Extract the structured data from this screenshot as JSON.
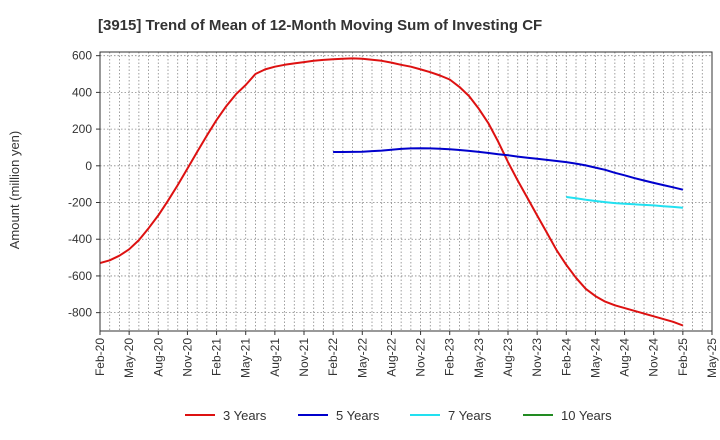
{
  "chart_data": {
    "type": "line",
    "title": "[3915]  Trend of Mean of 12-Month Moving Sum of Investing CF",
    "ylabel": "Amount (million yen)",
    "xlabel": "",
    "ylim": [
      -900,
      620
    ],
    "yticks": [
      600,
      400,
      200,
      0,
      -200,
      -400,
      -600,
      -800
    ],
    "x_tick_labels": [
      "Feb-20",
      "May-20",
      "Aug-20",
      "Nov-20",
      "Feb-21",
      "May-21",
      "Aug-21",
      "Nov-21",
      "Feb-22",
      "May-22",
      "Aug-22",
      "Nov-22",
      "Feb-23",
      "May-23",
      "Aug-23",
      "Nov-23",
      "Feb-24",
      "May-24",
      "Aug-24",
      "Nov-24",
      "Feb-25",
      "May-25"
    ],
    "grid": true,
    "legend_position": "bottom",
    "series": [
      {
        "name": "3 Years",
        "color": "#dd1111",
        "points": [
          [
            "Feb-20",
            -530
          ],
          [
            "Mar-20",
            -515
          ],
          [
            "Apr-20",
            -490
          ],
          [
            "May-20",
            -455
          ],
          [
            "Jun-20",
            -405
          ],
          [
            "Jul-20",
            -340
          ],
          [
            "Aug-20",
            -270
          ],
          [
            "Sep-20",
            -190
          ],
          [
            "Oct-20",
            -105
          ],
          [
            "Nov-20",
            -15
          ],
          [
            "Dec-20",
            75
          ],
          [
            "Jan-21",
            165
          ],
          [
            "Feb-21",
            250
          ],
          [
            "Mar-21",
            325
          ],
          [
            "Apr-21",
            390
          ],
          [
            "May-21",
            440
          ],
          [
            "Jun-21",
            500
          ],
          [
            "Jul-21",
            525
          ],
          [
            "Aug-21",
            540
          ],
          [
            "Sep-21",
            550
          ],
          [
            "Oct-21",
            558
          ],
          [
            "Nov-21",
            565
          ],
          [
            "Dec-21",
            572
          ],
          [
            "Jan-22",
            577
          ],
          [
            "Feb-22",
            580
          ],
          [
            "Mar-22",
            583
          ],
          [
            "Apr-22",
            585
          ],
          [
            "May-22",
            583
          ],
          [
            "Jun-22",
            578
          ],
          [
            "Jul-22",
            572
          ],
          [
            "Aug-22",
            562
          ],
          [
            "Sep-22",
            550
          ],
          [
            "Oct-22",
            540
          ],
          [
            "Nov-22",
            525
          ],
          [
            "Dec-22",
            510
          ],
          [
            "Jan-23",
            492
          ],
          [
            "Feb-23",
            470
          ],
          [
            "Mar-23",
            430
          ],
          [
            "Apr-23",
            380
          ],
          [
            "May-23",
            310
          ],
          [
            "Jun-23",
            230
          ],
          [
            "Jul-23",
            130
          ],
          [
            "Aug-23",
            20
          ],
          [
            "Sep-23",
            -80
          ],
          [
            "Oct-23",
            -175
          ],
          [
            "Nov-23",
            -270
          ],
          [
            "Dec-23",
            -365
          ],
          [
            "Jan-24",
            -460
          ],
          [
            "Feb-24",
            -540
          ],
          [
            "Mar-24",
            -610
          ],
          [
            "Apr-24",
            -670
          ],
          [
            "May-24",
            -710
          ],
          [
            "Jun-24",
            -740
          ],
          [
            "Jul-24",
            -760
          ],
          [
            "Aug-24",
            -775
          ],
          [
            "Sep-24",
            -790
          ],
          [
            "Oct-24",
            -805
          ],
          [
            "Nov-24",
            -820
          ],
          [
            "Dec-24",
            -835
          ],
          [
            "Jan-25",
            -850
          ],
          [
            "Feb-25",
            -870
          ]
        ]
      },
      {
        "name": "5 Years",
        "color": "#0000cc",
        "points": [
          [
            "Feb-22",
            75
          ],
          [
            "Mar-22",
            75
          ],
          [
            "Apr-22",
            76
          ],
          [
            "May-22",
            77
          ],
          [
            "Jun-22",
            80
          ],
          [
            "Jul-22",
            83
          ],
          [
            "Aug-22",
            88
          ],
          [
            "Sep-22",
            92
          ],
          [
            "Oct-22",
            95
          ],
          [
            "Nov-22",
            96
          ],
          [
            "Dec-22",
            95
          ],
          [
            "Jan-23",
            93
          ],
          [
            "Feb-23",
            90
          ],
          [
            "Mar-23",
            86
          ],
          [
            "Apr-23",
            81
          ],
          [
            "May-23",
            76
          ],
          [
            "Jun-23",
            70
          ],
          [
            "Jul-23",
            63
          ],
          [
            "Aug-23",
            57
          ],
          [
            "Sep-23",
            50
          ],
          [
            "Oct-23",
            44
          ],
          [
            "Nov-23",
            38
          ],
          [
            "Dec-23",
            32
          ],
          [
            "Jan-24",
            26
          ],
          [
            "Feb-24",
            20
          ],
          [
            "Mar-24",
            12
          ],
          [
            "Apr-24",
            2
          ],
          [
            "May-24",
            -10
          ],
          [
            "Jun-24",
            -22
          ],
          [
            "Jul-24",
            -38
          ],
          [
            "Aug-24",
            -52
          ],
          [
            "Sep-24",
            -67
          ],
          [
            "Oct-24",
            -80
          ],
          [
            "Nov-24",
            -93
          ],
          [
            "Dec-24",
            -105
          ],
          [
            "Jan-25",
            -117
          ],
          [
            "Feb-25",
            -130
          ]
        ]
      },
      {
        "name": "7 Years",
        "color": "#22e0f0",
        "points": [
          [
            "Feb-24",
            -170
          ],
          [
            "Mar-24",
            -177
          ],
          [
            "Apr-24",
            -185
          ],
          [
            "May-24",
            -192
          ],
          [
            "Jun-24",
            -198
          ],
          [
            "Jul-24",
            -203
          ],
          [
            "Aug-24",
            -207
          ],
          [
            "Sep-24",
            -210
          ],
          [
            "Oct-24",
            -213
          ],
          [
            "Nov-24",
            -216
          ],
          [
            "Dec-24",
            -220
          ],
          [
            "Jan-25",
            -224
          ],
          [
            "Feb-25",
            -228
          ]
        ]
      },
      {
        "name": "10 Years",
        "color": "#228b22",
        "points": []
      }
    ]
  }
}
